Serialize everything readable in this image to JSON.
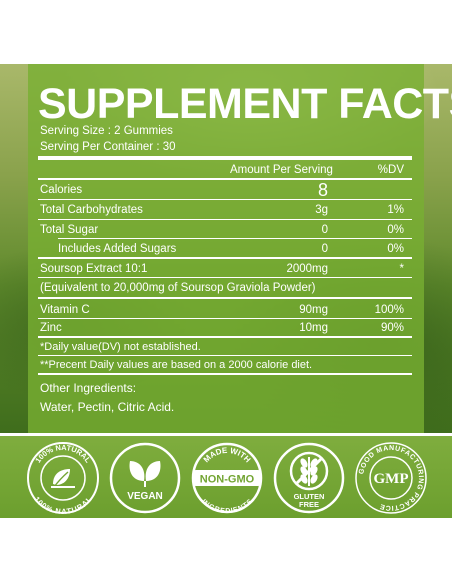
{
  "title": "SUPPLEMENT FACTS",
  "serving_size": "Serving Size : 2 Gummies",
  "servings_per_container": "Serving Per Container : 30",
  "header": {
    "amount": "Amount Per Serving",
    "dv": "%DV"
  },
  "rows": [
    {
      "name": "Calories",
      "amount": "8",
      "dv": ""
    },
    {
      "name": "Total Carbohydrates",
      "amount": "3g",
      "dv": "1%"
    },
    {
      "name": "Total Sugar",
      "amount": "0",
      "dv": "0%"
    },
    {
      "name": "Includes Added Sugars",
      "amount": "0",
      "dv": "0%"
    },
    {
      "name": "Soursop Extract 10:1",
      "amount": "2000mg",
      "dv": "*"
    },
    {
      "name": "(Equivalent to 20,000mg of Soursop Graviola Powder)",
      "amount": "",
      "dv": ""
    },
    {
      "name": "Vitamin C",
      "amount": "90mg",
      "dv": "100%"
    },
    {
      "name": "Zinc",
      "amount": "10mg",
      "dv": "90%"
    }
  ],
  "footnotes": [
    "*Daily value(DV) not established.",
    "**Precent Daily values are based on a 2000 calorie diet."
  ],
  "other_ingredients": {
    "label": "Other Ingredients:",
    "value": "Water, Pectin, Citric Acid."
  },
  "badges": {
    "natural": {
      "top": "100% NATURAL",
      "bottom": "100% NATURAL"
    },
    "vegan": "VEGAN",
    "non_gmo": {
      "top": "MADE WITH",
      "main": "NON-GMO",
      "bottom": "INGREDIENTS"
    },
    "gluten_free": {
      "line1": "GLUTEN",
      "line2": "FREE"
    },
    "gmp": {
      "center": "GMP",
      "ring": "GOOD MANUFACTURING PRACTICE"
    }
  },
  "colors": {
    "panel": "#78af32",
    "band": "#73a533",
    "text": "#ffffff"
  }
}
